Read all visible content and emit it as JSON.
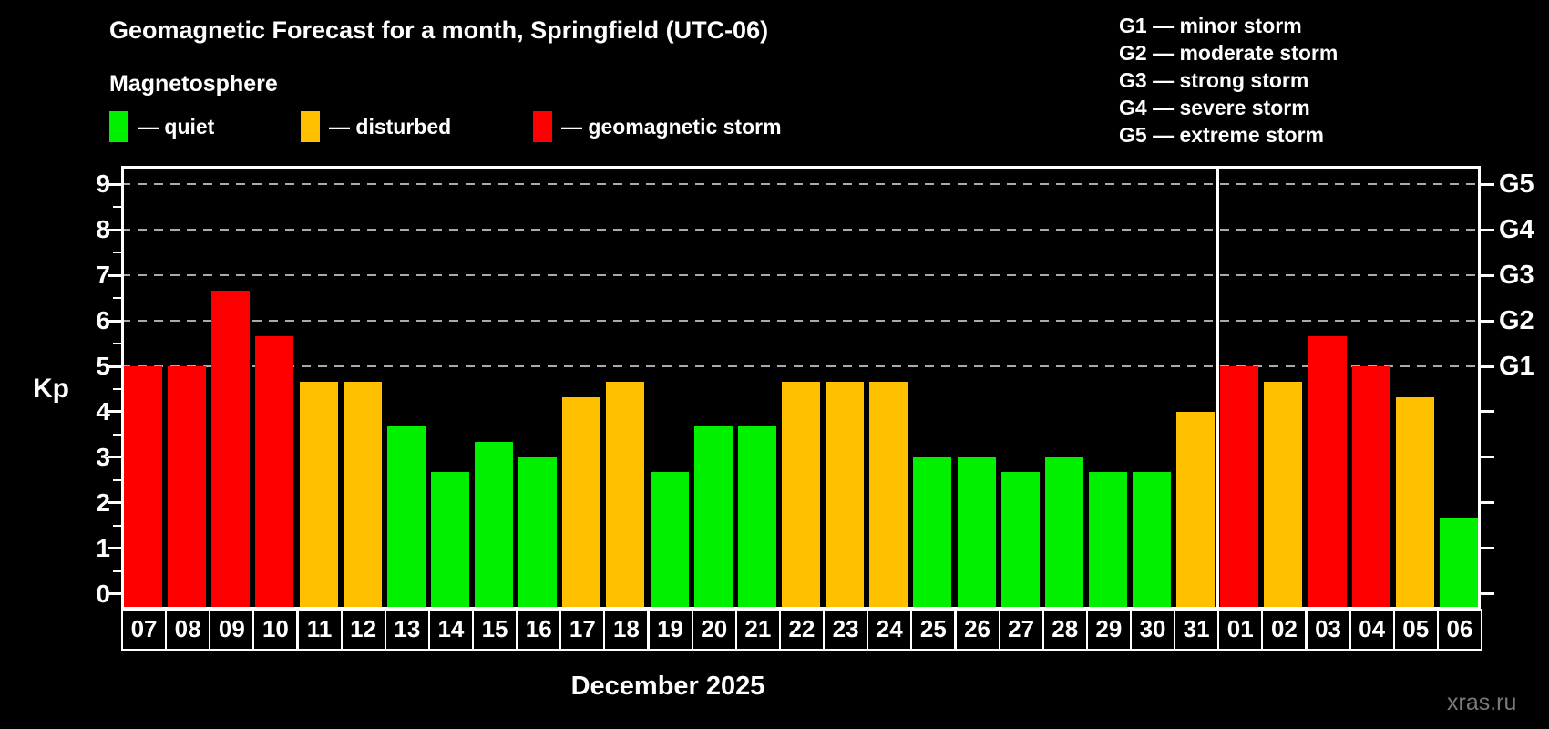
{
  "title": "Geomagnetic Forecast for a month, Springfield (UTC-06)",
  "subtitle": "Magnetosphere",
  "legend": {
    "items": [
      {
        "key": "quiet",
        "label": "— quiet",
        "color": "#00f000"
      },
      {
        "key": "disturbed",
        "label": "— disturbed",
        "color": "#ffc000"
      },
      {
        "key": "storm",
        "label": "— geomagnetic storm",
        "color": "#fc0000"
      }
    ]
  },
  "g_legend": [
    "G1 — minor storm",
    "G2 — moderate storm",
    "G3 — strong storm",
    "G4 — severe storm",
    "G5 — extreme storm"
  ],
  "y_axis_label": "Kp",
  "x_axis_label": "December 2025",
  "watermark": "xras.ru",
  "colors": {
    "quiet": "#00f000",
    "disturbed": "#ffc000",
    "storm": "#fc0000",
    "gridline": "#aaaaaa",
    "axis": "#ffffff",
    "background": "#000000"
  },
  "chart_data": {
    "type": "bar",
    "title": "Geomagnetic Forecast for a month, Springfield (UTC-06)",
    "xlabel": "December 2025",
    "ylabel": "Kp",
    "ylim": [
      -0.33,
      9.42
    ],
    "y_ticks": [
      0,
      1,
      2,
      3,
      4,
      5,
      6,
      7,
      8,
      9
    ],
    "gridlines_at": [
      5,
      6,
      7,
      8,
      9
    ],
    "grid": true,
    "right_axis_labels": [
      {
        "value": 5,
        "label": "G1"
      },
      {
        "value": 6,
        "label": "G2"
      },
      {
        "value": 7,
        "label": "G3"
      },
      {
        "value": 8,
        "label": "G4"
      },
      {
        "value": 9,
        "label": "G5"
      }
    ],
    "month_divider_after_index": 24,
    "categories": [
      "07",
      "08",
      "09",
      "10",
      "11",
      "12",
      "13",
      "14",
      "15",
      "16",
      "17",
      "18",
      "19",
      "20",
      "21",
      "22",
      "23",
      "24",
      "25",
      "26",
      "27",
      "28",
      "29",
      "30",
      "31",
      "01",
      "02",
      "03",
      "04",
      "05",
      "06"
    ],
    "values": [
      5.0,
      5.0,
      6.67,
      5.67,
      4.67,
      4.67,
      3.67,
      2.67,
      3.33,
      3.0,
      4.33,
      4.67,
      2.67,
      3.67,
      3.67,
      4.67,
      4.67,
      4.67,
      3.0,
      3.0,
      2.67,
      3.0,
      2.67,
      2.67,
      4.0,
      5.0,
      4.67,
      5.67,
      5.0,
      4.33,
      1.67
    ],
    "levels": [
      "storm",
      "storm",
      "storm",
      "storm",
      "disturbed",
      "disturbed",
      "quiet",
      "quiet",
      "quiet",
      "quiet",
      "disturbed",
      "disturbed",
      "quiet",
      "quiet",
      "quiet",
      "disturbed",
      "disturbed",
      "disturbed",
      "quiet",
      "quiet",
      "quiet",
      "quiet",
      "quiet",
      "quiet",
      "disturbed",
      "storm",
      "disturbed",
      "storm",
      "storm",
      "disturbed",
      "quiet"
    ]
  }
}
